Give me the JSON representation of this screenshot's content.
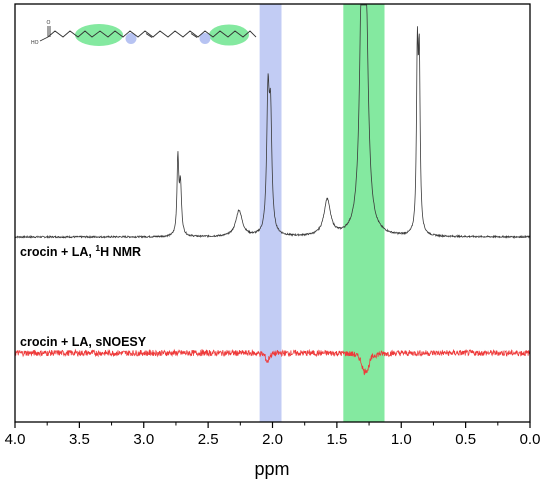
{
  "chart_data": {
    "type": "line",
    "xlabel": "ppm",
    "xlim": [
      4.0,
      0.0
    ],
    "x_reversed": true,
    "x_ticks": [
      "4.0",
      "3.5",
      "3.0",
      "2.5",
      "2.0",
      "1.5",
      "1.0",
      "0.5",
      "0.0"
    ],
    "y_ticks_shown": false,
    "grid": false,
    "highlight_bands": [
      {
        "from": 2.1,
        "to": 1.93,
        "color": "#b7c3f2",
        "opacity": 0.85
      },
      {
        "from": 1.45,
        "to": 1.13,
        "color": "#6ee58f",
        "opacity": 0.85
      }
    ],
    "series": [
      {
        "name": "crocin + LA, 1H NMR",
        "label_main": "crocin + LA, ",
        "label_sup": "1",
        "label_tail": "H NMR",
        "color": "#3a3a3a",
        "baseline": 0.0,
        "peaks": [
          {
            "ppm": 2.735,
            "height": 0.38,
            "width": 0.008
          },
          {
            "ppm": 2.715,
            "height": 0.25,
            "width": 0.01
          },
          {
            "ppm": 2.26,
            "height": 0.13,
            "width": 0.03
          },
          {
            "ppm": 2.035,
            "height": 0.66,
            "width": 0.012
          },
          {
            "ppm": 2.015,
            "height": 0.55,
            "width": 0.012
          },
          {
            "ppm": 1.575,
            "height": 0.18,
            "width": 0.03
          },
          {
            "ppm": 1.305,
            "height": 1.2,
            "width": 0.02
          },
          {
            "ppm": 1.275,
            "height": 1.02,
            "width": 0.022
          },
          {
            "ppm": 0.875,
            "height": 0.86,
            "width": 0.008
          },
          {
            "ppm": 0.86,
            "height": 0.82,
            "width": 0.008
          }
        ]
      },
      {
        "name": "crocin + LA, sNOESY",
        "label_main": "crocin + LA, sNOESY",
        "color": "#ee3a3a",
        "baseline": -0.58,
        "peaks": [
          {
            "ppm": 2.04,
            "height": -0.045,
            "width": 0.015
          },
          {
            "ppm": 1.29,
            "height": -0.075,
            "width": 0.022
          },
          {
            "ppm": 1.26,
            "height": -0.055,
            "width": 0.02
          }
        ]
      }
    ],
    "inset_molecule": {
      "labels": [
        "O",
        "HO"
      ],
      "highlight_colors": [
        "#6ee58f",
        "#b7c3f2"
      ]
    }
  }
}
